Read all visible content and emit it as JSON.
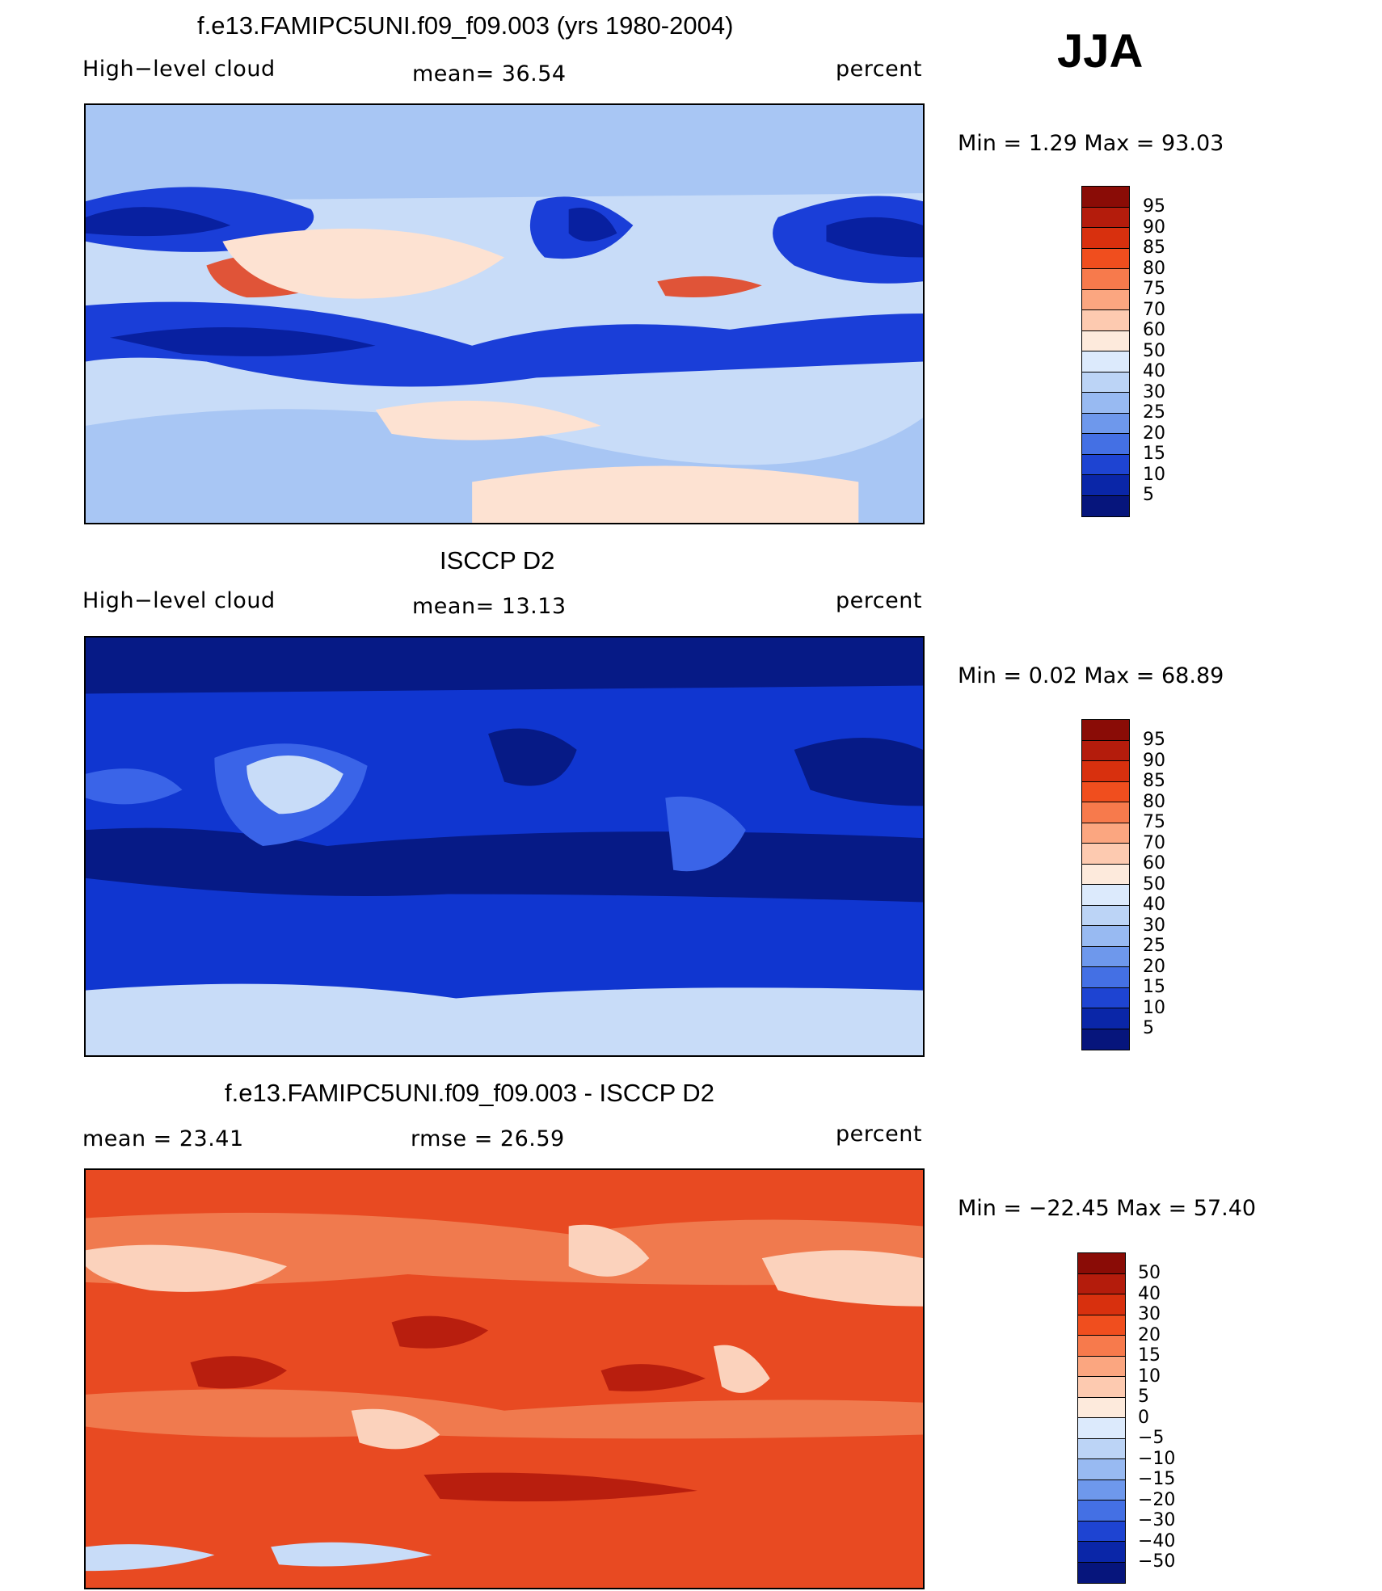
{
  "season": "JJA",
  "panels": [
    {
      "title": "f.e13.FAMIPC5UNI.f09_f09.003 (yrs 1980-2004)",
      "left_label": "High−level cloud",
      "mid_label": "mean=   36.54",
      "right_label": "percent",
      "minmax": "Min  =     1.29  Max  =    93.03",
      "bg": "#c8dcf8",
      "contours": [
        {
          "color": "#a8c6f4"
        },
        {
          "color": "#1a3ed8"
        },
        {
          "color": "#0820a0"
        },
        {
          "color": "#e05438"
        },
        {
          "color": "#fde2d2"
        }
      ]
    },
    {
      "title": "ISCCP D2",
      "left_label": "High−level cloud",
      "mid_label": "mean=   13.13",
      "right_label": "percent",
      "minmax": "Min  =     0.02  Max  =    68.89",
      "bg": "#1036d0",
      "contours": [
        {
          "color": "#061a86"
        },
        {
          "color": "#3a64e8"
        },
        {
          "color": "#c8dcf8"
        }
      ]
    },
    {
      "title": "f.e13.FAMIPC5UNI.f09_f09.003 - ISCCP D2",
      "left_label": "mean  =    23.41",
      "mid_label": "rmse  =    26.59",
      "right_label": "percent",
      "minmax": "Min  = −22.45  Max  =    57.40",
      "bg": "#e84a22",
      "contours": [
        {
          "color": "#f07a4e"
        },
        {
          "color": "#fbd2bc"
        },
        {
          "color": "#b81e0e"
        },
        {
          "color": "#c8dcf8"
        }
      ]
    }
  ],
  "colorbars": [
    {
      "labels": [
        "95",
        "90",
        "85",
        "80",
        "75",
        "70",
        "60",
        "50",
        "40",
        "30",
        "25",
        "20",
        "15",
        "10",
        "5"
      ],
      "colors": [
        "#8a0c06",
        "#b41c0c",
        "#d8300e",
        "#f04e1e",
        "#f77a4c",
        "#fba680",
        "#fdcab0",
        "#fdeadc",
        "#dceafc",
        "#bcd4f6",
        "#98baf2",
        "#6e98ec",
        "#4470e4",
        "#1e44d2",
        "#0a26a8",
        "#06157c"
      ]
    },
    {
      "labels": [
        "95",
        "90",
        "85",
        "80",
        "75",
        "70",
        "60",
        "50",
        "40",
        "30",
        "25",
        "20",
        "15",
        "10",
        "5"
      ],
      "colors": [
        "#8a0c06",
        "#b41c0c",
        "#d8300e",
        "#f04e1e",
        "#f77a4c",
        "#fba680",
        "#fdcab0",
        "#fdeadc",
        "#dceafc",
        "#bcd4f6",
        "#98baf2",
        "#6e98ec",
        "#4470e4",
        "#1e44d2",
        "#0a26a8",
        "#06157c"
      ]
    },
    {
      "labels": [
        "50",
        "40",
        "30",
        "20",
        "15",
        "10",
        "5",
        "0",
        "−5",
        "−10",
        "−15",
        "−20",
        "−30",
        "−40",
        "−50"
      ],
      "colors": [
        "#8a0c06",
        "#b41c0c",
        "#d8300e",
        "#f04e1e",
        "#f77a4c",
        "#fba680",
        "#fdcab0",
        "#fdeadc",
        "#dceafc",
        "#bcd4f6",
        "#98baf2",
        "#6e98ec",
        "#4470e4",
        "#1e44d2",
        "#0a26a8",
        "#06157c"
      ]
    }
  ]
}
